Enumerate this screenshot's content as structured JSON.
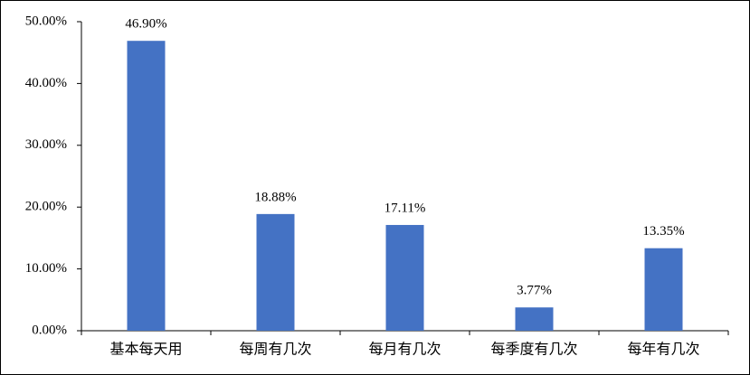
{
  "chart_data": {
    "type": "bar",
    "categories": [
      "基本每天用",
      "每周有几次",
      "每月有几次",
      "每季度有几次",
      "每年有几次"
    ],
    "values": [
      46.9,
      18.88,
      17.11,
      3.77,
      13.35
    ],
    "value_labels": [
      "46.90%",
      "18.88%",
      "17.11%",
      "3.77%",
      "13.35%"
    ],
    "color": "#4472c4",
    "ylim": [
      0,
      50
    ],
    "yticks": [
      {
        "value": 0,
        "label": "0.00%"
      },
      {
        "value": 10,
        "label": "10.00%"
      },
      {
        "value": 20,
        "label": "20.00%"
      },
      {
        "value": 30,
        "label": "30.00%"
      },
      {
        "value": 40,
        "label": "40.00%"
      },
      {
        "value": 50,
        "label": "50.00%"
      }
    ],
    "grid": false
  }
}
